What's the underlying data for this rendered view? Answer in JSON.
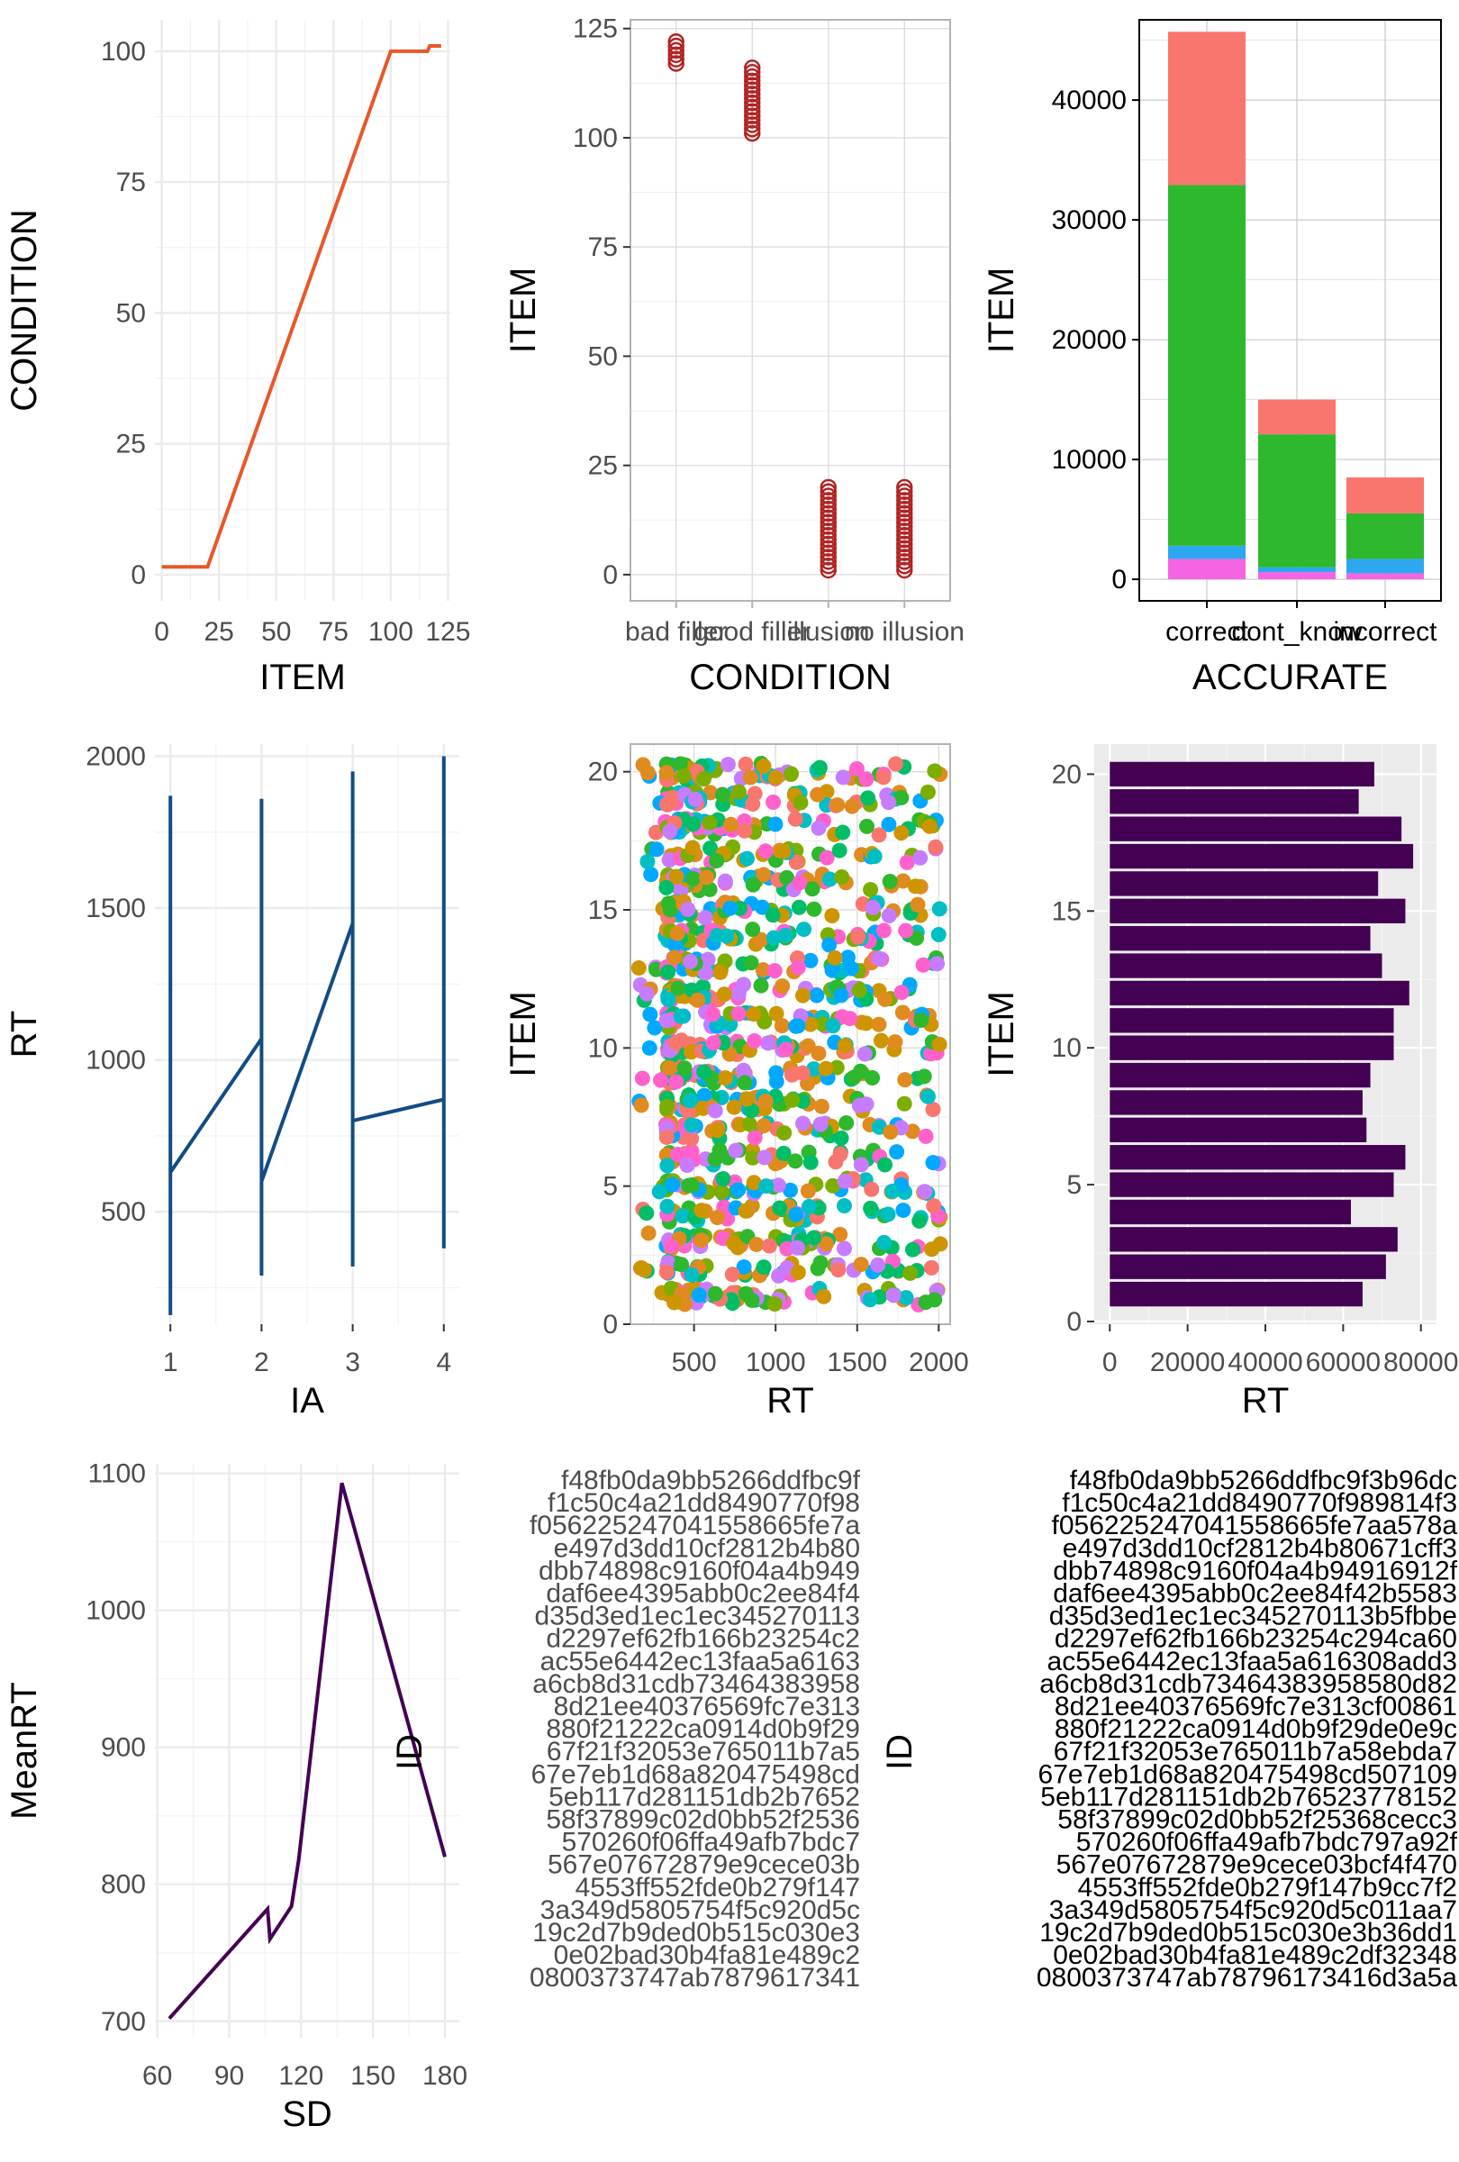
{
  "chart_data": [
    {
      "type": "line",
      "xlabel": "ITEM",
      "ylabel": "CONDITION",
      "xlim": [
        -3,
        126
      ],
      "ylim": [
        -5,
        106
      ],
      "xticks": [
        "0",
        "25",
        "50",
        "75",
        "100",
        "125"
      ],
      "yticks": [
        "0",
        "25",
        "50",
        "75",
        "100"
      ],
      "series": [
        {
          "color": "#E8572A",
          "x": [
            0,
            20,
            100,
            116,
            117,
            122
          ],
          "y": [
            1.5,
            1.5,
            100,
            100,
            101,
            101
          ]
        }
      ]
    },
    {
      "type": "scatter",
      "xlabel": "CONDITION",
      "ylabel": "ITEM",
      "xlim": [
        0.4,
        4.6
      ],
      "ylim": [
        -6,
        127
      ],
      "categories": [
        "bad filler",
        "good filler",
        "illusion",
        "no illusion"
      ],
      "yticks": [
        "0",
        "25",
        "50",
        "75",
        "100",
        "125"
      ],
      "point_color": "#B22222",
      "points": [
        {
          "category": "bad filler",
          "y_range": [
            117,
            122
          ]
        },
        {
          "category": "good filler",
          "y_range": [
            101,
            116
          ]
        },
        {
          "category": "illusion",
          "y_range": [
            1,
            20
          ]
        },
        {
          "category": "no illusion",
          "y_range": [
            1,
            20
          ]
        }
      ]
    },
    {
      "type": "bar",
      "stacked": true,
      "xlabel": "ACCURATE",
      "ylabel": "ITEM",
      "ylim": [
        -1800,
        46700
      ],
      "categories": [
        "correct",
        "dont_know",
        "incorrect"
      ],
      "yticks": [
        "0",
        "10000",
        "20000",
        "30000",
        "40000"
      ],
      "series": [
        {
          "color": "#F8766D",
          "values": [
            12800,
            2900,
            3000
          ]
        },
        {
          "color": "#2DB82D",
          "values": [
            30100,
            11100,
            3800
          ]
        },
        {
          "color": "#2DA7F0",
          "values": [
            1100,
            400,
            1200
          ]
        },
        {
          "color": "#F564E3",
          "values": [
            1700,
            600,
            500
          ]
        }
      ]
    },
    {
      "type": "line",
      "xlabel": "IA",
      "ylabel": "RT",
      "xlim": [
        0.83,
        4.17
      ],
      "ylim": [
        130,
        2040
      ],
      "xticks": [
        "1",
        "2",
        "3",
        "4"
      ],
      "yticks": [
        "500",
        "1000",
        "1500",
        "2000"
      ],
      "line_color": "#134B85",
      "series": [
        {
          "x": [
            1,
            1,
            1,
            2
          ],
          "y": [
            160,
            1870,
            630,
            1070
          ]
        },
        {
          "x": [
            2,
            2,
            2,
            3
          ],
          "y": [
            290,
            1860,
            600,
            1450
          ]
        },
        {
          "x": [
            3,
            3,
            3,
            4
          ],
          "y": [
            320,
            1950,
            800,
            870
          ]
        },
        {
          "x": [
            4,
            4,
            4,
            4
          ],
          "y": [
            380,
            2000,
            480,
            870
          ]
        }
      ]
    },
    {
      "type": "scatter",
      "xlabel": "RT",
      "ylabel": "ITEM",
      "xlim": [
        110,
        2070
      ],
      "ylim": [
        0,
        21
      ],
      "xticks": [
        "500",
        "1000",
        "1500",
        "2000"
      ],
      "yticks": [
        "0",
        "5",
        "10",
        "15",
        "20"
      ],
      "point_colors": [
        "#F8766D",
        "#CD9600",
        "#7CAE00",
        "#00BE67",
        "#00BFC4",
        "#00A9FF",
        "#C77CFF",
        "#FF61CC",
        "#E08B1F",
        "#2DB82D"
      ],
      "items": [
        1,
        20
      ],
      "rt_range": [
        160,
        2000
      ]
    },
    {
      "type": "bar",
      "orientation": "horizontal",
      "xlabel": "RT",
      "ylabel": "ITEM",
      "xlim": [
        -4000,
        84000
      ],
      "ylim": [
        -0.1,
        21.1
      ],
      "xticks": [
        "0",
        "20000",
        "40000",
        "60000",
        "80000"
      ],
      "yticks": [
        "0",
        "5",
        "10",
        "15",
        "20"
      ],
      "bar_color": "#440154",
      "categories": [
        1,
        2,
        3,
        4,
        5,
        6,
        7,
        8,
        9,
        10,
        11,
        12,
        13,
        14,
        15,
        16,
        17,
        18,
        19,
        20
      ],
      "values": [
        65000,
        71000,
        74000,
        62000,
        73000,
        76000,
        66000,
        65000,
        67000,
        73000,
        73000,
        77000,
        70000,
        67000,
        76000,
        69000,
        78000,
        75000,
        64000,
        68000
      ]
    },
    {
      "type": "line",
      "xlabel": "SD",
      "ylabel": "MeanRT",
      "xlim": [
        59,
        186
      ],
      "ylim": [
        688,
        1107
      ],
      "xticks": [
        "60",
        "90",
        "120",
        "150",
        "180"
      ],
      "yticks": [
        "700",
        "800",
        "900",
        "1000",
        "1100"
      ],
      "line_color": "#440154",
      "x": [
        65,
        106,
        107,
        116,
        119,
        137,
        180
      ],
      "y": [
        702,
        782,
        760,
        784,
        818,
        1093,
        820
      ]
    }
  ],
  "id_panels": {
    "ylabel": "ID",
    "left": [
      "f48fb0da9bb5266ddfbc9f",
      "f1c50c4a21dd8490770f98",
      "f056225247041558665fe7a",
      "e497d3dd10cf2812b4b80",
      "dbb74898c9160f04a4b949",
      "daf6ee4395abb0c2ee84f4",
      "d35d3ed1ec1ec345270113",
      "d2297ef62fb166b23254c2",
      "ac55e6442ec13faa5a6163",
      "a6cb8d31cdb73464383958",
      "8d21ee40376569fc7e313",
      "880f21222ca0914d0b9f29",
      "67f21f32053e765011b7a5",
      "67e7eb1d68a820475498cd",
      "5eb117d281151db2b7652",
      "58f37899c02d0bb52f2536",
      "570260f06ffa49afb7bdc7",
      "567e07672879e9cece03b",
      "4553ff552fde0b279f147",
      "3a349d5805754f5c920d5c",
      "19c2d7b9ded0b515c030e3",
      "0e02bad30b4fa81e489c2",
      "0800373747ab7879617341"
    ],
    "right": [
      "f48fb0da9bb5266ddfbc9f3b96dc",
      "f1c50c4a21dd8490770f989814f3",
      "f056225247041558665fe7aa578a",
      "e497d3dd10cf2812b4b80671cff3",
      "dbb74898c9160f04a4b94916912f",
      "daf6ee4395abb0c2ee84f42b5583",
      "d35d3ed1ec1ec345270113b5fbbe",
      "d2297ef62fb166b23254c294ca60",
      "ac55e6442ec13faa5a616308add3",
      "a6cb8d31cdb73464383958580d82",
      "8d21ee40376569fc7e313cf00861",
      "880f21222ca0914d0b9f29de0e9c",
      "67f21f32053e765011b7a58ebda7",
      "67e7eb1d68a820475498cd507109",
      "5eb117d281151db2b76523778152",
      "58f37899c02d0bb52f25368cecc3",
      "570260f06ffa49afb7bdc797a92f",
      "567e07672879e9cece03bcf4f470",
      "4553ff552fde0b279f147b9cc7f2",
      "3a349d5805754f5c920d5c011aa7",
      "19c2d7b9ded0b515c030e3b36dd1",
      "0e02bad30b4fa81e489c2df32348",
      "0800373747ab78796173416d3a5a"
    ]
  }
}
